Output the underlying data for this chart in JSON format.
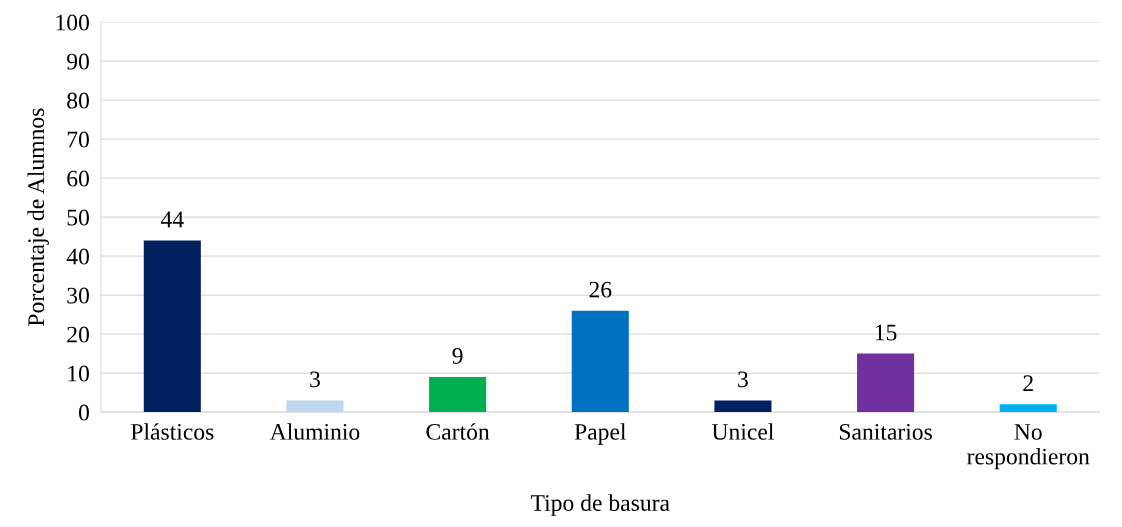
{
  "chart_data": {
    "type": "bar",
    "xlabel": "Tipo de basura",
    "ylabel": "Porcentaje de Alumnos",
    "categories": [
      "Plásticos",
      "Aluminio",
      "Cartón",
      "Papel",
      "Unicel",
      "Sanitarios",
      "No\nrespondieron"
    ],
    "values": [
      44,
      3,
      9,
      26,
      3,
      15,
      2
    ],
    "colors": [
      "#002060",
      "#bdd7ee",
      "#00b050",
      "#0070c0",
      "#002060",
      "#7030a0",
      "#00b0f0"
    ],
    "ylim": [
      0,
      100
    ],
    "yticks": [
      0,
      10,
      20,
      30,
      40,
      50,
      60,
      70,
      80,
      90,
      100
    ],
    "grid": "y",
    "data_labels": true
  }
}
